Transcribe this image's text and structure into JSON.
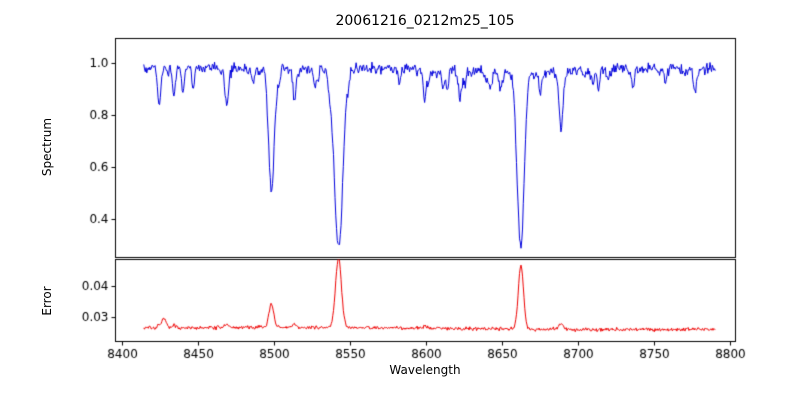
{
  "figure_title": "20061216_0212m25_105",
  "seed": 12,
  "xticks": [
    8400,
    8450,
    8500,
    8550,
    8600,
    8650,
    8700,
    8750,
    8800
  ],
  "chart_data": [
    {
      "type": "line",
      "panel": "spectrum",
      "title": "20061216_0212m25_105",
      "xlabel": "",
      "ylabel": "Spectrum",
      "color": "#0000dd",
      "grid": false,
      "legend": "none",
      "xlim": [
        8395.4,
        8803.3
      ],
      "ylim": [
        0.254,
        1.096
      ],
      "yticks": [
        0.4,
        0.6,
        0.8,
        1.0
      ],
      "ytick_decimals": 1,
      "x_data_range": [
        8414,
        8790
      ],
      "continuum_level": 0.98,
      "noise_sigma": 0.012,
      "absorption_lines": [
        {
          "center": 8424.1,
          "depth": 0.14,
          "width": 1.0
        },
        {
          "center": 8433.9,
          "depth": 0.1,
          "width": 0.9
        },
        {
          "center": 8439.5,
          "depth": 0.07,
          "width": 0.8
        },
        {
          "center": 8446.4,
          "depth": 0.07,
          "width": 0.8
        },
        {
          "center": 8468.4,
          "depth": 0.13,
          "width": 1.0
        },
        {
          "center": 8498.0,
          "depth": 0.48,
          "width": 1.8
        },
        {
          "center": 8513.1,
          "depth": 0.12,
          "width": 1.0
        },
        {
          "center": 8526.7,
          "depth": 0.07,
          "width": 0.9
        },
        {
          "center": 8542.1,
          "depth": 0.69,
          "width": 2.8
        },
        {
          "center": 8582.3,
          "depth": 0.06,
          "width": 0.9
        },
        {
          "center": 8598.8,
          "depth": 0.08,
          "width": 0.9
        },
        {
          "center": 8611.0,
          "depth": 0.07,
          "width": 0.9
        },
        {
          "center": 8621.6,
          "depth": 0.08,
          "width": 0.9
        },
        {
          "center": 8648.5,
          "depth": 0.06,
          "width": 0.9
        },
        {
          "center": 8662.1,
          "depth": 0.67,
          "width": 2.2
        },
        {
          "center": 8674.7,
          "depth": 0.08,
          "width": 0.9
        },
        {
          "center": 8688.6,
          "depth": 0.23,
          "width": 1.2
        },
        {
          "center": 8713.2,
          "depth": 0.08,
          "width": 0.9
        },
        {
          "center": 8736.0,
          "depth": 0.07,
          "width": 0.9
        },
        {
          "center": 8757.2,
          "depth": 0.06,
          "width": 0.8
        },
        {
          "center": 8776.5,
          "depth": 0.07,
          "width": 0.9
        }
      ],
      "weak_line_field": {
        "count": 80,
        "max_depth": 0.06,
        "min_width": 0.5,
        "max_width": 1.3
      }
    },
    {
      "type": "line",
      "panel": "error",
      "title": "",
      "xlabel": "Wavelength",
      "ylabel": "Error",
      "color": "#ee0000",
      "grid": false,
      "legend": "none",
      "xlim": [
        8395.4,
        8803.3
      ],
      "ylim": [
        0.0223,
        0.0487
      ],
      "yticks": [
        0.03,
        0.04
      ],
      "ytick_decimals": 2,
      "x_data_range": [
        8414,
        8790
      ],
      "baseline_level": 0.0265,
      "noise_sigma": 0.0003,
      "error_peaks": [
        {
          "center": 8424.1,
          "amp": 0.0012,
          "width": 1.2
        },
        {
          "center": 8427.5,
          "amp": 0.0028,
          "width": 1.4
        },
        {
          "center": 8434.0,
          "amp": 0.001,
          "width": 1.0
        },
        {
          "center": 8468.4,
          "amp": 0.001,
          "width": 1.2
        },
        {
          "center": 8498.0,
          "amp": 0.0078,
          "width": 1.5
        },
        {
          "center": 8513.1,
          "amp": 0.0012,
          "width": 1.2
        },
        {
          "center": 8542.1,
          "amp": 0.0225,
          "width": 1.9
        },
        {
          "center": 8598.8,
          "amp": 0.0008,
          "width": 1.0
        },
        {
          "center": 8662.1,
          "amp": 0.0205,
          "width": 1.7
        },
        {
          "center": 8688.6,
          "amp": 0.0022,
          "width": 1.2
        }
      ]
    }
  ]
}
